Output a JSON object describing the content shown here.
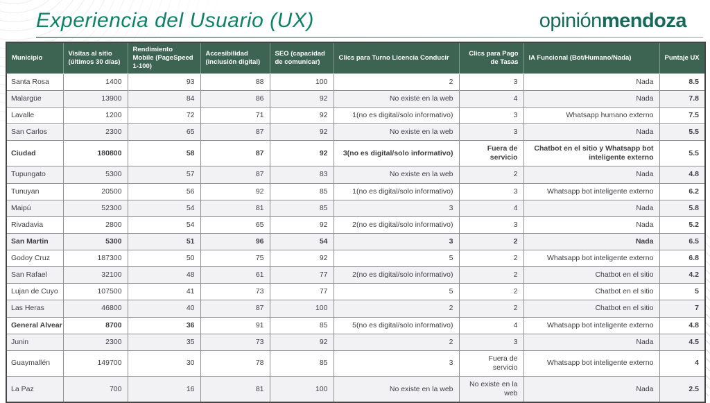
{
  "slide": {
    "title": "Experiencia del Usuario (UX)",
    "logo_light": "opinión",
    "logo_bold": "mendoza"
  },
  "colors": {
    "title_green": "#0e8169",
    "logo_green": "#17695a",
    "table_header_bg": "#3d6353",
    "row_stripe": "#f2f2f4",
    "cell_text": "#3e3e44"
  },
  "table": {
    "columns": [
      {
        "key": "municipio",
        "label": "Municipio"
      },
      {
        "key": "visitas",
        "label": "Visitas al sitio (últimos 30 días)"
      },
      {
        "key": "rendimiento",
        "label": "Rendimiento Mobile (PageSpeed 1-100)"
      },
      {
        "key": "accesibilidad",
        "label": "Accesibilidad (inclusión digital)"
      },
      {
        "key": "seo",
        "label": "SEO (capacidad de comunicar)"
      },
      {
        "key": "clics_turno",
        "label": "Clics para Turno Licencia Conducir"
      },
      {
        "key": "clics_pago",
        "label": "Clics para Pago de Tasas"
      },
      {
        "key": "ia_funcional",
        "label": "IA Funcional (Bot/Humano/Nada)"
      },
      {
        "key": "puntaje_ux",
        "label": "Puntaje UX"
      }
    ],
    "rows": [
      {
        "cells": [
          "Santa Rosa",
          "1400",
          "93",
          "88",
          "100",
          "2",
          "3",
          "Nada",
          "8.5"
        ]
      },
      {
        "cells": [
          "Malargüe",
          "13900",
          "84",
          "86",
          "92",
          "No existe en la web",
          "4",
          "Nada",
          "7.8"
        ]
      },
      {
        "cells": [
          "Lavalle",
          "1200",
          "72",
          "71",
          "92",
          "1(no es digital/solo informativo)",
          "3",
          "Whatsapp humano externo",
          "7.5"
        ]
      },
      {
        "cells": [
          "San Carlos",
          "2300",
          "65",
          "87",
          "92",
          "No existe en la web",
          "3",
          "Nada",
          "5.5"
        ]
      },
      {
        "cells": [
          "Ciudad",
          "180800",
          "58",
          "87",
          "92",
          "3(no es digital/solo informativo)",
          "Fuera de servicio",
          "Chatbot en el sitio y Whatsapp bot inteligente externo",
          "5.5"
        ],
        "bold": true
      },
      {
        "cells": [
          "Tupungato",
          "5300",
          "57",
          "87",
          "83",
          "No existe en la web",
          "2",
          "Nada",
          "4.8"
        ]
      },
      {
        "cells": [
          "Tunuyan",
          "20500",
          "56",
          "92",
          "85",
          "1(no es digital/solo informativo)",
          "3",
          "Whatsapp bot inteligente externo",
          "6.2"
        ]
      },
      {
        "cells": [
          "Maipú",
          "52300",
          "54",
          "81",
          "85",
          "3",
          "4",
          "Nada",
          "5.8"
        ]
      },
      {
        "cells": [
          "Rivadavia",
          "2800",
          "54",
          "65",
          "92",
          "2(no es digital/solo informativo)",
          "3",
          "Nada",
          "5.2"
        ]
      },
      {
        "cells": [
          "San Martin",
          "5300",
          "51",
          "96",
          "54",
          "3",
          "2",
          "Nada",
          "6.5"
        ],
        "bold": true
      },
      {
        "cells": [
          "Godoy Cruz",
          "187300",
          "50",
          "75",
          "92",
          "5",
          "2",
          "Whatsapp bot inteligente externo",
          "6.8"
        ]
      },
      {
        "cells": [
          "San Rafael",
          "32100",
          "48",
          "61",
          "77",
          "2(no es digital/solo informativo)",
          "2",
          "Chatbot en el sitio",
          "4.2"
        ]
      },
      {
        "cells": [
          "Lujan de Cuyo",
          "107500",
          "41",
          "73",
          "77",
          "5",
          "2",
          "Chatbot en el sitio",
          "5"
        ]
      },
      {
        "cells": [
          "Las Heras",
          "46800",
          "40",
          "87",
          "100",
          "2",
          "2",
          "Chatbot en el sitio",
          "7"
        ]
      },
      {
        "cells": [
          "General Alvear",
          "8700",
          "36",
          "91",
          "85",
          "5(no es digital/solo informativo)",
          "4",
          "Whatsapp bot inteligente externo",
          "4.8"
        ],
        "bold_cols": [
          0,
          1,
          2
        ]
      },
      {
        "cells": [
          "Junin",
          "2300",
          "35",
          "73",
          "92",
          "2",
          "3",
          "Nada",
          "4.5"
        ]
      },
      {
        "cells": [
          "Guaymallén",
          "149700",
          "30",
          "78",
          "85",
          "3",
          "Fuera de servicio",
          "Whatsapp bot inteligente externo",
          "4"
        ]
      },
      {
        "cells": [
          "La Paz",
          "700",
          "16",
          "81",
          "100",
          "No existe en la web",
          "No existe en la web",
          "Nada",
          "2.5"
        ]
      }
    ]
  }
}
